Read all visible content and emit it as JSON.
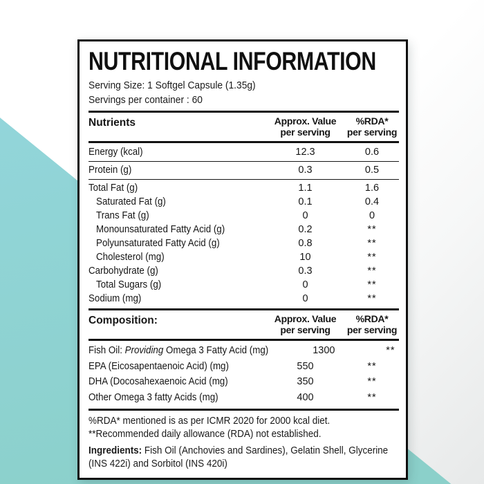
{
  "theme": {
    "teal_accent": "#8ed3d4",
    "background_gray": "#e8eaea",
    "border_black": "#0e0e0e"
  },
  "label": {
    "title": "NUTRITIONAL INFORMATION",
    "serving_size": "Serving Size: 1 Softgel Capsule (1.35g)",
    "servings_per_container": "Servings per container : 60",
    "nutrients": {
      "header": {
        "name": "Nutrients",
        "value_line1": "Approx. Value",
        "value_line2": "per serving",
        "rda_line1": "%RDA*",
        "rda_line2": "per serving"
      },
      "rows": [
        {
          "name": "Energy (kcal)",
          "value": "12.3",
          "rda": "0.6"
        },
        {
          "name": "Protein (g)",
          "value": "0.3",
          "rda": "0.5"
        },
        {
          "name": "Total Fat (g)",
          "value": "1.1",
          "rda": "1.6"
        },
        {
          "name": "Saturated Fat (g)",
          "value": "0.1",
          "rda": "0.4"
        },
        {
          "name": "Trans Fat (g)",
          "value": "0",
          "rda": "0"
        },
        {
          "name": "Monounsaturated Fatty Acid (g)",
          "value": "0.2",
          "rda": "**"
        },
        {
          "name": "Polyunsaturated Fatty Acid (g)",
          "value": "0.8",
          "rda": "**"
        },
        {
          "name": "Cholesterol (mg)",
          "value": "10",
          "rda": "**"
        },
        {
          "name": "Carbohydrate (g)",
          "value": "0.3",
          "rda": "**"
        },
        {
          "name": "Total Sugars (g)",
          "value": "0",
          "rda": "**"
        },
        {
          "name": "Sodium (mg)",
          "value": "0",
          "rda": "**"
        }
      ]
    },
    "composition": {
      "header": {
        "name": "Composition:",
        "value_line1": "Approx. Value",
        "value_line2": "per serving",
        "rda_line1": "%RDA*",
        "rda_line2": "per serving"
      },
      "rows": [
        {
          "name_pre": "Fish Oil: ",
          "name_italic": "Providing",
          "name_post": " Omega 3 Fatty Acid (mg)",
          "value": "1300",
          "rda": "**"
        },
        {
          "name": "EPA (Eicosapentaenoic Acid) (mg)",
          "value": "550",
          "rda": "**"
        },
        {
          "name": "DHA (Docosahexaenoic Acid (mg)",
          "value": "350",
          "rda": "**"
        },
        {
          "name": "Other Omega 3 fatty Acids (mg)",
          "value": "400",
          "rda": "**"
        }
      ]
    },
    "footnotes": {
      "rda_note": "%RDA* mentioned is as per ICMR 2020 for 2000 kcal diet. **Recommended daily allowance (RDA) not established.",
      "ingredients_label": "Ingredients:",
      "ingredients_text": " Fish Oil (Anchovies and Sardines), Gelatin Shell, Glycerine (INS 422i) and Sorbitol (INS 420i)"
    }
  }
}
